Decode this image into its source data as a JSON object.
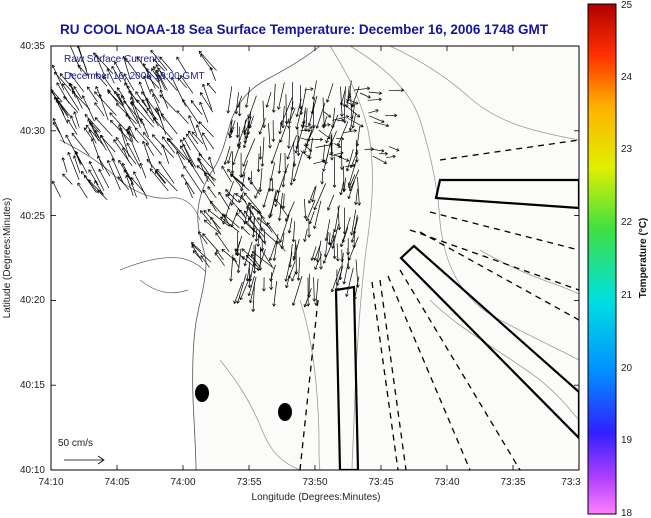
{
  "title": "RU COOL  NOAA-18  Sea Surface Temperature:  December 16, 2006 1748 GMT",
  "info": {
    "line1": "Raw Surface Current:",
    "line2": "December 16, 2006 19:00 GMT"
  },
  "scale": {
    "label": "50 cm/s"
  },
  "axes": {
    "xlabel": "Longitude (Degrees:Minutes)",
    "ylabel": "Latitude (Degrees:Minutes)",
    "x_ticks": [
      "74:10",
      "74:05",
      "74:00",
      "73:55",
      "73:50",
      "73:45",
      "73:40",
      "73:35",
      "73:3"
    ],
    "y_ticks": [
      "40:35",
      "40:30",
      "40:25",
      "40:20",
      "40:15",
      "40:10"
    ]
  },
  "colorbar": {
    "label": "Temperature (°C)",
    "ticks": [
      "25",
      "24",
      "23",
      "22",
      "21",
      "20",
      "19",
      "18"
    ],
    "range": [
      18,
      25
    ]
  },
  "colors": {
    "title": "#1414a0",
    "land": "#ffffff",
    "contour": "#888888",
    "vector": "#000000"
  }
}
